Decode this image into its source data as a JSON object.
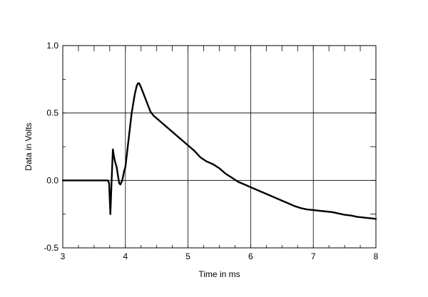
{
  "chart_data": {
    "type": "line",
    "title": "",
    "xlabel": "Time in ms",
    "ylabel": "Data in Volts",
    "xlim": [
      3,
      8
    ],
    "ylim": [
      -0.5,
      1.0
    ],
    "x_ticks": [
      3,
      4,
      5,
      6,
      7,
      8
    ],
    "x_tick_labels": [
      "3",
      "4",
      "5",
      "6",
      "7",
      "8"
    ],
    "y_ticks": [
      -0.5,
      0.0,
      0.5,
      1.0
    ],
    "y_tick_labels": [
      "-0.5",
      "0.0",
      "0.5",
      "1.0"
    ],
    "x_minor_step": 0.25,
    "y_minor_step": 0.25,
    "grid": true,
    "line_color": "#000000",
    "series": [
      {
        "x": [
          3.0,
          3.72,
          3.74,
          3.76,
          3.78,
          3.8,
          3.82,
          3.84,
          3.86,
          3.88,
          3.9,
          3.92,
          3.95,
          3.98,
          4.0,
          4.05,
          4.1,
          4.15,
          4.18,
          4.2,
          4.22,
          4.25,
          4.3,
          4.35,
          4.4,
          4.45,
          4.5,
          4.6,
          4.7,
          4.8,
          4.9,
          5.0,
          5.1,
          5.2,
          5.3,
          5.4,
          5.5,
          5.6,
          5.7,
          5.8,
          5.9,
          6.0,
          6.1,
          6.2,
          6.3,
          6.4,
          6.5,
          6.6,
          6.7,
          6.8,
          6.9,
          7.0,
          7.1,
          7.2,
          7.3,
          7.4,
          7.5,
          7.6,
          7.7,
          7.8,
          7.9,
          8.0
        ],
        "y": [
          0.0,
          0.0,
          -0.02,
          -0.25,
          0.0,
          0.23,
          0.17,
          0.13,
          0.1,
          0.04,
          -0.02,
          -0.03,
          0.0,
          0.07,
          0.1,
          0.3,
          0.5,
          0.64,
          0.7,
          0.72,
          0.72,
          0.69,
          0.63,
          0.57,
          0.51,
          0.48,
          0.46,
          0.42,
          0.38,
          0.34,
          0.3,
          0.26,
          0.22,
          0.17,
          0.14,
          0.12,
          0.09,
          0.05,
          0.02,
          -0.01,
          -0.03,
          -0.05,
          -0.07,
          -0.09,
          -0.11,
          -0.13,
          -0.15,
          -0.17,
          -0.19,
          -0.205,
          -0.215,
          -0.22,
          -0.225,
          -0.23,
          -0.235,
          -0.245,
          -0.255,
          -0.26,
          -0.27,
          -0.275,
          -0.28,
          -0.285
        ]
      }
    ]
  }
}
